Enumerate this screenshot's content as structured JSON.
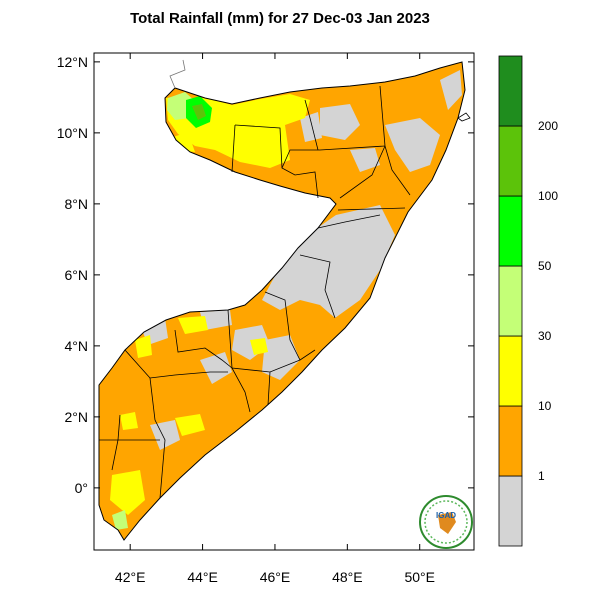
{
  "title": "Total Rainfall (mm) for 27 Dec-03 Jan 2023",
  "map": {
    "lon_range": [
      41,
      51.5
    ],
    "lat_range": [
      -1.75,
      12.25
    ],
    "lat_ticks": [
      {
        "value": 12,
        "label": "12°N"
      },
      {
        "value": 10,
        "label": "10°N"
      },
      {
        "value": 8,
        "label": "8°N"
      },
      {
        "value": 6,
        "label": "6°N"
      },
      {
        "value": 4,
        "label": "4°N"
      },
      {
        "value": 2,
        "label": "2°N"
      },
      {
        "value": 0,
        "label": "0°"
      }
    ],
    "lon_ticks": [
      {
        "value": 42,
        "label": "42°E"
      },
      {
        "value": 44,
        "label": "44°E"
      },
      {
        "value": 46,
        "label": "46°E"
      },
      {
        "value": 48,
        "label": "48°E"
      },
      {
        "value": 50,
        "label": "50°E"
      }
    ]
  },
  "legend": {
    "colors": {
      "grey": "#d4d4d4",
      "orange": "#ffa500",
      "yellow": "#ffff00",
      "light_green": "#c4ff77",
      "green": "#00ff00",
      "mid_green": "#5cc30a",
      "dark_green": "#1f8d1e"
    },
    "classes": [
      {
        "color": "#d4d4d4",
        "label": "1"
      },
      {
        "color": "#ffa500",
        "label": "10"
      },
      {
        "color": "#ffff00",
        "label": "30"
      },
      {
        "color": "#c4ff77",
        "label": "50"
      },
      {
        "color": "#00ff00",
        "label": "100"
      },
      {
        "color": "#5cc30a",
        "label": "200"
      },
      {
        "color": "#1f8d1e",
        "label": ""
      }
    ]
  },
  "logo": {
    "text": "IGAD"
  }
}
